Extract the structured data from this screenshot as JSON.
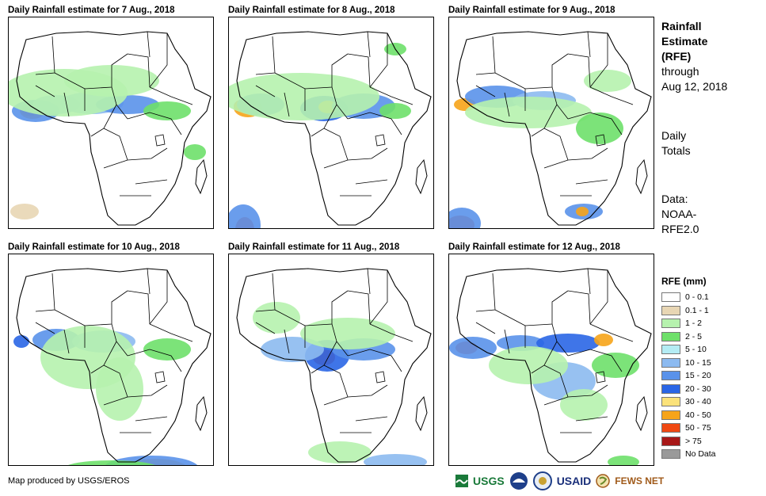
{
  "panels": [
    {
      "title": "Daily Rainfall estimate for 7 Aug., 2018"
    },
    {
      "title": "Daily Rainfall estimate for 8 Aug., 2018"
    },
    {
      "title": "Daily Rainfall estimate for 9 Aug., 2018"
    },
    {
      "title": "Daily Rainfall estimate for 10 Aug., 2018"
    },
    {
      "title": "Daily Rainfall estimate for 11 Aug., 2018"
    },
    {
      "title": "Daily Rainfall estimate for 12 Aug., 2018"
    }
  ],
  "side": {
    "title_line1": "Rainfall",
    "title_line2": "Estimate",
    "title_line3": "(RFE)",
    "through": "through",
    "date": "Aug 12, 2018",
    "daily1": "Daily",
    "daily2": "Totals",
    "data1": "Data:",
    "data2": "NOAA-",
    "data3": "RFE2.0"
  },
  "legend": {
    "title": "RFE (mm)",
    "items": [
      {
        "label": "0 - 0.1",
        "color": "#ffffff"
      },
      {
        "label": "0.1 - 1",
        "color": "#e8d6b4"
      },
      {
        "label": "1 - 2",
        "color": "#b6f2ae"
      },
      {
        "label": "2 - 5",
        "color": "#6ee06a"
      },
      {
        "label": "5 - 10",
        "color": "#b4ecf4"
      },
      {
        "label": "10 - 15",
        "color": "#8cbaf0"
      },
      {
        "label": "15 - 20",
        "color": "#5a92ea"
      },
      {
        "label": "20 - 30",
        "color": "#2a66e6"
      },
      {
        "label": "30 - 40",
        "color": "#fbe27a"
      },
      {
        "label": "40 - 50",
        "color": "#f6a41a"
      },
      {
        "label": "50 - 75",
        "color": "#f04812"
      },
      {
        "label": "> 75",
        "color": "#a81818"
      },
      {
        "label": "No Data",
        "color": "#9a9a9a"
      }
    ]
  },
  "credit": "Map produced by USGS/EROS",
  "logos": {
    "usgs": "USGS",
    "usaid": "USAID",
    "fewsnet": "FEWS NET"
  }
}
